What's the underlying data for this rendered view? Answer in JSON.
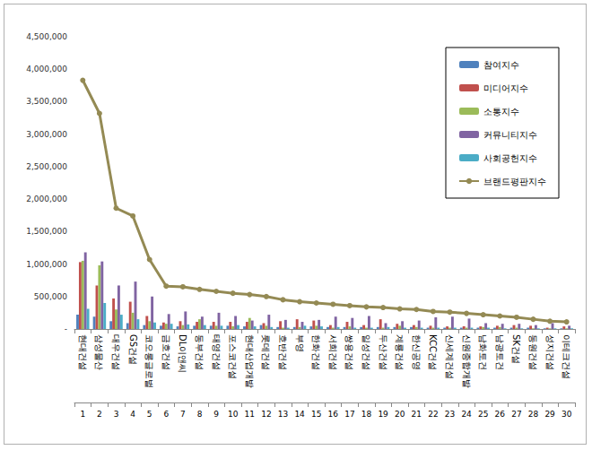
{
  "chart_data": {
    "type": "bar",
    "categories": [
      "현대건설",
      "삼성물산",
      "대우건설",
      "GS건설",
      "코오롱글로벌",
      "금호건설",
      "DL이앤씨",
      "동부건설",
      "태영건설",
      "포스코건설",
      "현대산업개발",
      "롯데건설",
      "호반건설",
      "부영",
      "한화건설",
      "서희건설",
      "쌍용건설",
      "일성건설",
      "두산건설",
      "계룡건설",
      "한신공영",
      "KCC건설",
      "신세계건설",
      "신원종합개발",
      "남화토건",
      "남광토건",
      "SK건설",
      "동원건설",
      "성지건설",
      "이테크건설"
    ],
    "secondary_categories": [
      1,
      2,
      3,
      4,
      5,
      6,
      7,
      8,
      9,
      10,
      11,
      12,
      13,
      14,
      15,
      16,
      17,
      18,
      19,
      20,
      21,
      22,
      23,
      24,
      25,
      26,
      27,
      28,
      29,
      30
    ],
    "series": [
      {
        "name": "참여지수",
        "type": "bar",
        "color": "#4f81bd",
        "values": [
          220000,
          190000,
          120000,
          90000,
          60000,
          50000,
          40000,
          50000,
          50000,
          50000,
          40000,
          60000,
          30000,
          30000,
          40000,
          30000,
          30000,
          30000,
          30000,
          30000,
          30000,
          20000,
          20000,
          20000,
          20000,
          20000,
          20000,
          20000,
          10000,
          10000
        ]
      },
      {
        "name": "미디어지수",
        "type": "bar",
        "color": "#c0504d",
        "values": [
          1030000,
          670000,
          470000,
          420000,
          200000,
          100000,
          120000,
          110000,
          110000,
          110000,
          110000,
          90000,
          120000,
          150000,
          130000,
          60000,
          110000,
          60000,
          150000,
          80000,
          60000,
          50000,
          40000,
          40000,
          40000,
          50000,
          60000,
          50000,
          20000,
          40000
        ]
      },
      {
        "name": "소통지수",
        "type": "bar",
        "color": "#9bbb59",
        "values": [
          1050000,
          980000,
          300000,
          250000,
          120000,
          80000,
          60000,
          150000,
          50000,
          40000,
          170000,
          50000,
          20000,
          30000,
          50000,
          20000,
          40000,
          20000,
          20000,
          50000,
          30000,
          20000,
          20000,
          20000,
          30000,
          30000,
          20000,
          10000,
          10000,
          10000
        ]
      },
      {
        "name": "커뮤니티지수",
        "type": "bar",
        "color": "#8064a2",
        "values": [
          1180000,
          1040000,
          670000,
          730000,
          500000,
          230000,
          270000,
          190000,
          250000,
          200000,
          130000,
          220000,
          140000,
          110000,
          140000,
          190000,
          170000,
          200000,
          90000,
          120000,
          130000,
          180000,
          190000,
          160000,
          90000,
          80000,
          80000,
          60000,
          90000,
          50000
        ]
      },
      {
        "name": "사회공헌지수",
        "type": "bar",
        "color": "#4bacc6",
        "values": [
          310000,
          400000,
          220000,
          150000,
          100000,
          80000,
          70000,
          60000,
          50000,
          60000,
          40000,
          30000,
          20000,
          50000,
          40000,
          30000,
          20000,
          20000,
          30000,
          20000,
          20000,
          20000,
          20000,
          20000,
          20000,
          10000,
          10000,
          10000,
          10000,
          10000
        ]
      },
      {
        "name": "브랜드평판지수",
        "type": "line",
        "color": "#948a54",
        "marker": "circle",
        "values": [
          3830000,
          3320000,
          1860000,
          1740000,
          1070000,
          660000,
          650000,
          610000,
          580000,
          550000,
          530000,
          500000,
          450000,
          420000,
          400000,
          380000,
          360000,
          340000,
          330000,
          310000,
          300000,
          270000,
          260000,
          240000,
          220000,
          200000,
          180000,
          150000,
          120000,
          110000
        ]
      }
    ],
    "ylim": [
      0,
      4500000
    ],
    "yticks": [
      {
        "value": 0,
        "label": "-"
      },
      {
        "value": 500000,
        "label": "500,000"
      },
      {
        "value": 1000000,
        "label": "1,000,000"
      },
      {
        "value": 1500000,
        "label": "1,500,000"
      },
      {
        "value": 2000000,
        "label": "2,000,000"
      },
      {
        "value": 2500000,
        "label": "2,500,000"
      },
      {
        "value": 3000000,
        "label": "3,000,000"
      },
      {
        "value": 3500000,
        "label": "3,500,000"
      },
      {
        "value": 4000000,
        "label": "4,000,000"
      },
      {
        "value": 4500000,
        "label": "4,500,000"
      }
    ],
    "grid": false,
    "legend": "upper right"
  }
}
